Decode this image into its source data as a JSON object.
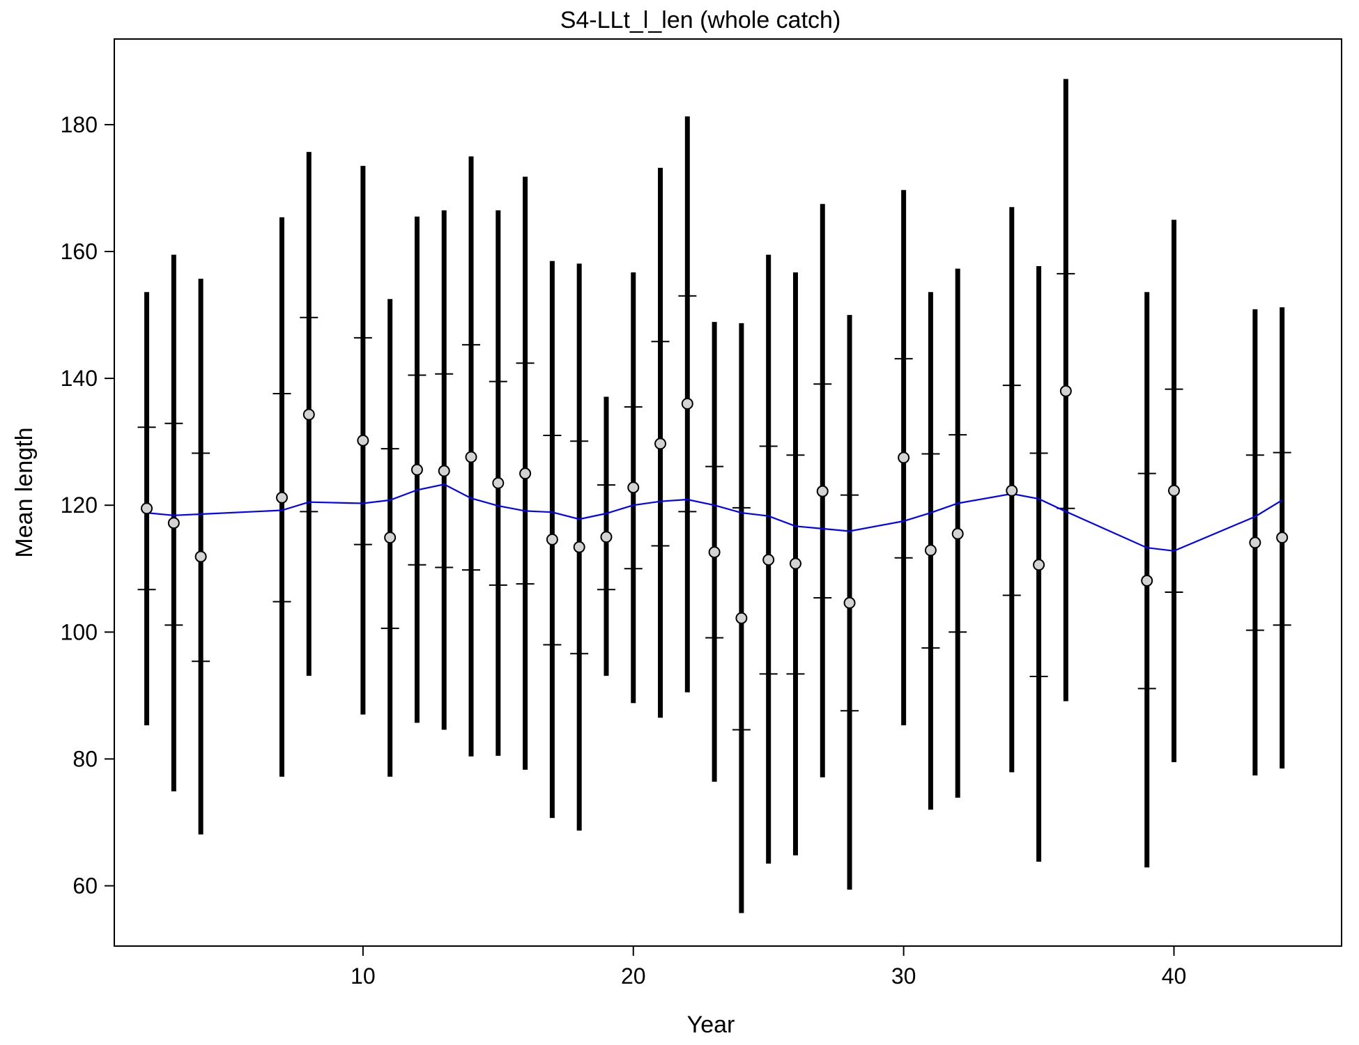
{
  "chart_data": {
    "type": "scatter",
    "title": "S4-LLt_l_len (whole catch)",
    "xlabel": "Year",
    "ylabel": "Mean length",
    "xlim": [
      0.8,
      46.2
    ],
    "ylim": [
      50.5,
      193.5
    ],
    "xticks": [
      10,
      20,
      30,
      40
    ],
    "yticks": [
      60,
      80,
      100,
      120,
      140,
      160,
      180
    ],
    "grid": false,
    "colors": {
      "points_fill": "#d3d3d3",
      "bars": "#000000",
      "expected_line": "#0000ff"
    },
    "series": [
      {
        "kind": "observed",
        "x": [
          2,
          3,
          4,
          7,
          8,
          10,
          11,
          12,
          13,
          14,
          15,
          16,
          17,
          18,
          19,
          20,
          21,
          22,
          23,
          24,
          25,
          26,
          27,
          28,
          30,
          31,
          32,
          34,
          35,
          36,
          39,
          40,
          43,
          44
        ],
        "y": [
          119.5,
          117.2,
          111.9,
          121.2,
          134.3,
          130.2,
          114.9,
          125.6,
          125.4,
          127.6,
          123.5,
          125.0,
          114.6,
          113.4,
          115.0,
          122.8,
          129.7,
          136.0,
          112.6,
          102.2,
          111.4,
          110.8,
          122.2,
          104.6,
          127.5,
          112.9,
          115.5,
          122.3,
          110.6,
          138.0,
          108.1,
          122.3,
          114.1,
          114.9
        ],
        "outer_lo": [
          85.3,
          74.9,
          68.1,
          77.2,
          93.1,
          87.0,
          77.2,
          85.7,
          84.6,
          80.4,
          80.5,
          78.3,
          70.7,
          68.7,
          93.1,
          88.8,
          86.5,
          90.5,
          76.4,
          55.7,
          63.5,
          64.8,
          77.1,
          59.4,
          85.3,
          72.0,
          73.9,
          77.9,
          63.8,
          89.1,
          62.9,
          79.5,
          77.4,
          78.5
        ],
        "outer_hi": [
          153.6,
          159.5,
          155.7,
          165.4,
          175.7,
          173.5,
          152.5,
          165.5,
          166.5,
          175.0,
          166.5,
          171.8,
          158.5,
          158.1,
          137.1,
          156.7,
          173.2,
          181.3,
          148.9,
          148.7,
          159.5,
          156.7,
          167.5,
          150.0,
          169.7,
          153.6,
          157.3,
          167.0,
          157.7,
          187.2,
          153.6,
          165.0,
          150.9,
          151.2
        ],
        "inner_lo": [
          106.7,
          101.1,
          95.4,
          104.8,
          119.0,
          113.8,
          100.6,
          110.6,
          110.2,
          109.8,
          107.4,
          107.6,
          98.0,
          96.6,
          106.7,
          110.0,
          113.6,
          119.0,
          99.1,
          84.6,
          93.4,
          93.4,
          105.4,
          87.6,
          111.7,
          97.5,
          100.0,
          105.8,
          93.0,
          119.5,
          91.1,
          106.3,
          100.3,
          101.1
        ],
        "inner_hi": [
          132.3,
          132.9,
          128.2,
          137.6,
          149.6,
          146.4,
          128.9,
          140.5,
          140.7,
          145.3,
          139.5,
          142.4,
          131.0,
          130.1,
          123.2,
          135.5,
          145.8,
          153.0,
          126.1,
          119.6,
          129.3,
          127.9,
          139.1,
          121.6,
          143.1,
          128.1,
          131.1,
          138.9,
          128.2,
          156.5,
          125.0,
          138.3,
          127.9,
          128.3
        ]
      },
      {
        "kind": "expected",
        "x": [
          2,
          3,
          4,
          7,
          8,
          10,
          11,
          12,
          13,
          14,
          15,
          16,
          17,
          18,
          19,
          20,
          21,
          22,
          23,
          24,
          25,
          26,
          27,
          28,
          30,
          31,
          32,
          34,
          35,
          36,
          39,
          40,
          43,
          44
        ],
        "y": [
          118.8,
          118.4,
          118.6,
          119.2,
          120.5,
          120.3,
          120.8,
          122.4,
          123.3,
          121.1,
          119.9,
          119.1,
          118.9,
          117.8,
          118.7,
          120.0,
          120.6,
          120.9,
          120.0,
          118.8,
          118.3,
          116.7,
          116.3,
          115.9,
          117.5,
          118.8,
          120.3,
          121.8,
          121.0,
          119.0,
          113.3,
          112.8,
          118.2,
          120.8
        ]
      }
    ]
  }
}
